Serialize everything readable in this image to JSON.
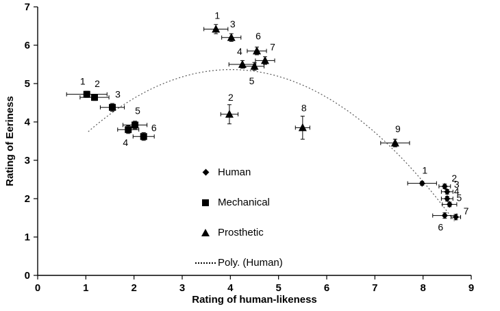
{
  "chart_data": {
    "type": "scatter",
    "title": "",
    "xlabel": "Rating of human-likeness",
    "ylabel": "Rating of Eeriness",
    "xlim": [
      0,
      9
    ],
    "ylim": [
      0,
      7
    ],
    "xticks": [
      0,
      1,
      2,
      3,
      4,
      5,
      6,
      7,
      8,
      9
    ],
    "yticks": [
      0,
      1,
      2,
      3,
      4,
      5,
      6,
      7
    ],
    "grid": false,
    "marker_color": "#000000",
    "legend_position": "inside-lower-center",
    "series": [
      {
        "name": "Human",
        "marker": "diamond",
        "points": [
          {
            "label": "1",
            "x": 7.98,
            "y": 2.4,
            "xerr": 0.3,
            "yerr": 0.05,
            "ldx": 4,
            "ldy": -14
          },
          {
            "label": "2",
            "x": 8.45,
            "y": 2.32,
            "xerr": 0.12,
            "yerr": 0.06,
            "ldx": 14,
            "ldy": -7
          },
          {
            "label": "3",
            "x": 8.5,
            "y": 2.18,
            "xerr": 0.12,
            "yerr": 0.06,
            "ldx": 14,
            "ldy": -6
          },
          {
            "label": "4",
            "x": 8.5,
            "y": 2.0,
            "xerr": 0.12,
            "yerr": 0.06,
            "ldx": 14,
            "ldy": -6
          },
          {
            "label": "5",
            "x": 8.55,
            "y": 1.85,
            "xerr": 0.15,
            "yerr": 0.06,
            "ldx": 14,
            "ldy": -5
          },
          {
            "label": "6",
            "x": 8.45,
            "y": 1.56,
            "xerr": 0.25,
            "yerr": 0.07,
            "ldx": -6,
            "ldy": 22
          },
          {
            "label": "7",
            "x": 8.68,
            "y": 1.52,
            "xerr": 0.1,
            "yerr": 0.07,
            "ldx": 15,
            "ldy": -4
          }
        ]
      },
      {
        "name": "Mechanical",
        "marker": "square",
        "points": [
          {
            "label": "1",
            "x": 1.02,
            "y": 4.72,
            "xerr": 0.42,
            "yerr": 0.08,
            "ldx": -6,
            "ldy": -14
          },
          {
            "label": "2",
            "x": 1.18,
            "y": 4.64,
            "xerr": 0.3,
            "yerr": 0.08,
            "ldx": 4,
            "ldy": -15
          },
          {
            "label": "3",
            "x": 1.55,
            "y": 4.38,
            "xerr": 0.25,
            "yerr": 0.1,
            "ldx": 8,
            "ldy": -14
          },
          {
            "label": "4",
            "x": 1.88,
            "y": 3.8,
            "xerr": 0.22,
            "yerr": 0.1,
            "ldx": -4,
            "ldy": 24
          },
          {
            "label": "5",
            "x": 2.02,
            "y": 3.92,
            "xerr": 0.25,
            "yerr": 0.1,
            "ldx": 4,
            "ldy": -16
          },
          {
            "label": "6",
            "x": 2.2,
            "y": 3.62,
            "xerr": 0.22,
            "yerr": 0.1,
            "ldx": 15,
            "ldy": -8
          }
        ]
      },
      {
        "name": "Prosthetic",
        "marker": "triangle",
        "points": [
          {
            "label": "1",
            "x": 3.7,
            "y": 6.42,
            "xerr": 0.25,
            "yerr": 0.12,
            "ldx": 2,
            "ldy": -15
          },
          {
            "label": "2",
            "x": 3.98,
            "y": 4.2,
            "xerr": 0.18,
            "yerr": 0.25,
            "ldx": 2,
            "ldy": -20
          },
          {
            "label": "3",
            "x": 4.02,
            "y": 6.2,
            "xerr": 0.2,
            "yerr": 0.1,
            "ldx": 2,
            "ldy": -15
          },
          {
            "label": "4",
            "x": 4.25,
            "y": 5.5,
            "xerr": 0.28,
            "yerr": 0.1,
            "ldx": -4,
            "ldy": -14
          },
          {
            "label": "5",
            "x": 4.5,
            "y": 5.45,
            "xerr": 0.2,
            "yerr": 0.1,
            "ldx": -4,
            "ldy": 26
          },
          {
            "label": "6",
            "x": 4.55,
            "y": 5.85,
            "xerr": 0.2,
            "yerr": 0.1,
            "ldx": 2,
            "ldy": -17
          },
          {
            "label": "7",
            "x": 4.72,
            "y": 5.6,
            "xerr": 0.2,
            "yerr": 0.1,
            "ldx": 11,
            "ldy": -15
          },
          {
            "label": "8",
            "x": 5.5,
            "y": 3.85,
            "xerr": 0.15,
            "yerr": 0.3,
            "ldx": 2,
            "ldy": -24
          },
          {
            "label": "9",
            "x": 7.42,
            "y": 3.45,
            "xerr": 0.3,
            "yerr": 0.1,
            "ldx": 4,
            "ldy": -16
          }
        ]
      }
    ],
    "fit": {
      "name": "Poly. (Human)",
      "style": "dotted",
      "color": "#555555",
      "coeffs": [
        -0.184,
        1.478,
        2.397
      ],
      "xrange": [
        1.05,
        8.65
      ]
    }
  }
}
